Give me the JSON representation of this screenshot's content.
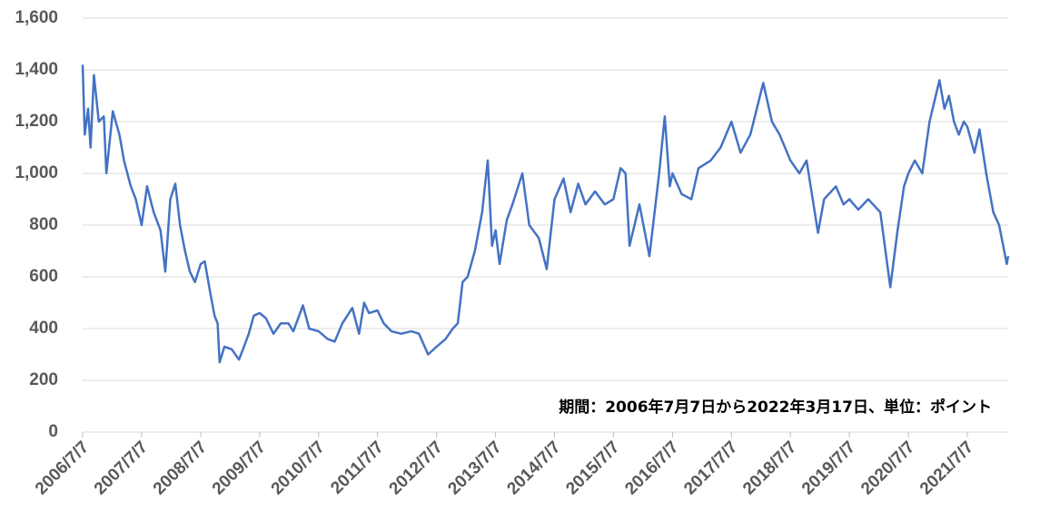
{
  "chart_data": {
    "type": "line",
    "annotation": "期間：2006年7月7日から2022年3月17日、単位：ポイント",
    "xlim": [
      "2006/7/7",
      "2022/3/17"
    ],
    "xticks": [
      "2006/7/7",
      "2007/7/7",
      "2008/7/7",
      "2009/7/7",
      "2010/7/7",
      "2011/7/7",
      "2012/7/7",
      "2013/7/7",
      "2014/7/7",
      "2015/7/7",
      "2016/7/7",
      "2017/7/7",
      "2018/7/7",
      "2019/7/7",
      "2020/7/7",
      "2021/7/7"
    ],
    "ylim": [
      0,
      1600
    ],
    "yticks": [
      0,
      200,
      400,
      600,
      800,
      {
        "value": 1000,
        "label": "1,000"
      },
      {
        "value": 1200,
        "label": "1,200"
      },
      {
        "value": 1400,
        "label": "1,400"
      },
      {
        "value": 1600,
        "label": "1,600"
      }
    ],
    "grid": true,
    "x": [
      "2006/7/7",
      "2006/7/20",
      "2006/8/10",
      "2006/8/25",
      "2006/9/15",
      "2006/10/15",
      "2006/11/15",
      "2006/12/1",
      "2007/1/10",
      "2007/2/20",
      "2007/3/20",
      "2007/5/1",
      "2007/6/1",
      "2007/7/7",
      "2007/8/10",
      "2007/9/20",
      "2007/11/1",
      "2007/12/1",
      "2008/1/1",
      "2008/2/1",
      "2008/3/1",
      "2008/4/1",
      "2008/5/1",
      "2008/6/1",
      "2008/7/7",
      "2008/8/1",
      "2008/9/1",
      "2008/10/1",
      "2008/10/20",
      "2008/11/1",
      "2008/12/1",
      "2009/1/15",
      "2009/3/1",
      "2009/4/1",
      "2009/5/1",
      "2009/6/1",
      "2009/7/7",
      "2009/8/15",
      "2009/10/1",
      "2009/11/15",
      "2010/1/1",
      "2010/2/1",
      "2010/4/1",
      "2010/5/10",
      "2010/7/7",
      "2010/9/1",
      "2010/10/15",
      "2010/12/1",
      "2011/2/1",
      "2011/3/15",
      "2011/4/15",
      "2011/5/15",
      "2011/7/7",
      "2011/8/15",
      "2011/10/1",
      "2011/12/1",
      "2012/2/1",
      "2012/3/20",
      "2012/5/15",
      "2012/7/7",
      "2012/9/1",
      "2012/10/15",
      "2012/11/15",
      "2012/12/15",
      "2013/1/15",
      "2013/3/1",
      "2013/4/15",
      "2013/5/20",
      "2013/6/15",
      "2013/7/7",
      "2013/8/1",
      "2013/9/15",
      "2013/10/20",
      "2013/12/20",
      "2014/2/1",
      "2014/4/1",
      "2014/5/20",
      "2014/7/7",
      "2014/9/1",
      "2014/10/15",
      "2014/12/1",
      "2015/1/15",
      "2015/3/15",
      "2015/5/15",
      "2015/7/7",
      "2015/8/20",
      "2015/9/20",
      "2015/10/15",
      "2015/12/15",
      "2016/2/15",
      "2016/4/15",
      "2016/5/20",
      "2016/6/20",
      "2016/7/7",
      "2016/9/1",
      "2016/11/1",
      "2016/12/15",
      "2017/3/1",
      "2017/5/1",
      "2017/7/7",
      "2017/9/1",
      "2017/11/1",
      "2018/1/20",
      "2018/3/15",
      "2018/5/1",
      "2018/7/7",
      "2018/9/1",
      "2018/10/15",
      "2018/12/25",
      "2019/2/1",
      "2019/4/15",
      "2019/6/1",
      "2019/7/7",
      "2019/9/1",
      "2019/11/1",
      "2020/1/15",
      "2020/3/17",
      "2020/5/1",
      "2020/6/10",
      "2020/7/7",
      "2020/8/15",
      "2020/10/1",
      "2020/11/15",
      "2021/1/15",
      "2021/2/15",
      "2021/3/15",
      "2021/4/15",
      "2021/5/15",
      "2021/6/15",
      "2021/7/7",
      "2021/8/20",
      "2021/9/20",
      "2021/11/1",
      "2021/12/15",
      "2022/1/20",
      "2022/2/20",
      "2022/3/8",
      "2022/3/17"
    ],
    "series": [
      {
        "color": "#4472c4",
        "values": [
          1420,
          1150,
          1250,
          1100,
          1380,
          1200,
          1220,
          1000,
          1240,
          1150,
          1050,
          950,
          900,
          800,
          950,
          850,
          780,
          620,
          900,
          960,
          800,
          700,
          620,
          580,
          650,
          660,
          550,
          450,
          420,
          270,
          330,
          320,
          280,
          330,
          380,
          450,
          460,
          440,
          380,
          420,
          420,
          390,
          490,
          400,
          390,
          360,
          350,
          420,
          480,
          380,
          500,
          460,
          470,
          420,
          390,
          380,
          390,
          380,
          300,
          330,
          360,
          400,
          420,
          580,
          600,
          700,
          850,
          1050,
          720,
          780,
          650,
          820,
          880,
          1000,
          800,
          750,
          630,
          900,
          980,
          850,
          960,
          880,
          930,
          880,
          900,
          1020,
          1000,
          720,
          880,
          680,
          1000,
          1220,
          950,
          1000,
          920,
          900,
          1020,
          1050,
          1100,
          1200,
          1080,
          1150,
          1350,
          1200,
          1150,
          1050,
          1000,
          1050,
          770,
          900,
          950,
          880,
          900,
          860,
          900,
          850,
          560,
          780,
          950,
          1000,
          1050,
          1000,
          1200,
          1360,
          1250,
          1300,
          1200,
          1150,
          1200,
          1180,
          1080,
          1170,
          1000,
          850,
          800,
          700,
          650,
          680
        ]
      }
    ]
  }
}
